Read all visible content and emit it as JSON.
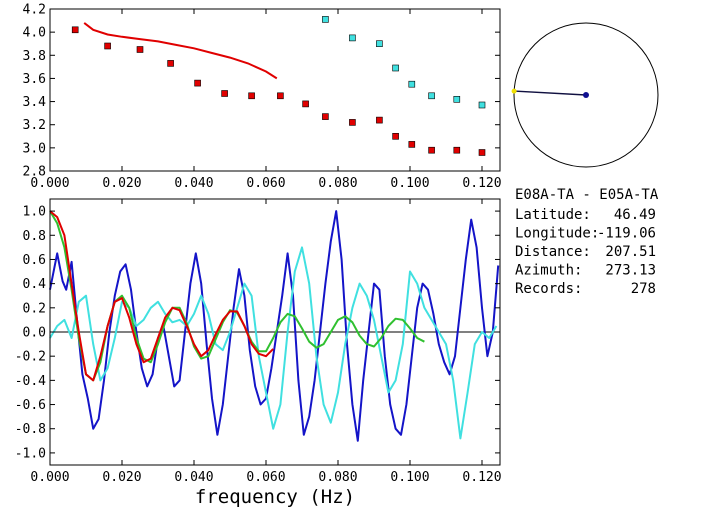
{
  "chart_data": [
    {
      "type": "scatter",
      "xlim": [
        0.0,
        0.125
      ],
      "ylim": [
        2.8,
        4.2
      ],
      "x_ticks": [
        "0.000",
        "0.020",
        "0.040",
        "0.060",
        "0.080",
        "0.100",
        "0.120"
      ],
      "y_ticks": [
        "2.8",
        "3.0",
        "3.2",
        "3.4",
        "3.6",
        "3.8",
        "4.0",
        "4.2"
      ],
      "series": [
        {
          "color": "#e00000",
          "kind": "markers",
          "x": [
            0.007,
            0.016,
            0.025,
            0.0335,
            0.041,
            0.0485,
            0.056,
            0.064,
            0.071,
            0.0765,
            0.084,
            0.0915,
            0.096,
            0.1005,
            0.106,
            0.113,
            0.12
          ],
          "y": [
            4.02,
            3.88,
            3.85,
            3.73,
            3.56,
            3.47,
            3.45,
            3.45,
            3.38,
            3.27,
            3.22,
            3.24,
            3.1,
            3.03,
            2.98,
            2.98,
            2.96
          ]
        },
        {
          "color": "#40e0e0",
          "kind": "markers",
          "x": [
            0.0765,
            0.084,
            0.0915,
            0.096,
            0.1005,
            0.106,
            0.113,
            0.12
          ],
          "y": [
            4.11,
            3.95,
            3.9,
            3.69,
            3.55,
            3.45,
            3.42,
            3.37
          ]
        },
        {
          "color": "#e00000",
          "kind": "line",
          "x": [
            0.0095,
            0.012,
            0.016,
            0.02,
            0.025,
            0.03,
            0.035,
            0.04,
            0.045,
            0.05,
            0.055,
            0.06,
            0.063
          ],
          "y": [
            4.08,
            4.02,
            3.98,
            3.96,
            3.94,
            3.92,
            3.89,
            3.86,
            3.82,
            3.78,
            3.73,
            3.66,
            3.6
          ]
        }
      ]
    },
    {
      "type": "line",
      "xlim": [
        0.0,
        0.125
      ],
      "ylim": [
        -1.1,
        1.1
      ],
      "xlabel": "frequency (Hz)",
      "x_ticks": [
        "0.000",
        "0.020",
        "0.040",
        "0.060",
        "0.080",
        "0.100",
        "0.120"
      ],
      "y_ticks": [
        "1.0",
        "0.8",
        "0.6",
        "0.4",
        "0.2",
        "0.0",
        "-0.2",
        "-0.4",
        "-0.6",
        "-0.8",
        "-1.0"
      ],
      "series": [
        {
          "color": "#1414c8",
          "x": [
            0.0,
            0.002,
            0.0035,
            0.0045,
            0.006,
            0.0075,
            0.009,
            0.0105,
            0.012,
            0.0135,
            0.015,
            0.0165,
            0.018,
            0.0195,
            0.021,
            0.0225,
            0.024,
            0.0255,
            0.027,
            0.0285,
            0.03,
            0.0315,
            0.033,
            0.0345,
            0.036,
            0.0375,
            0.039,
            0.0405,
            0.042,
            0.0435,
            0.045,
            0.0465,
            0.048,
            0.0495,
            0.051,
            0.0525,
            0.054,
            0.0555,
            0.057,
            0.0585,
            0.06,
            0.0615,
            0.063,
            0.0645,
            0.066,
            0.0675,
            0.069,
            0.0705,
            0.072,
            0.0735,
            0.075,
            0.0765,
            0.078,
            0.0795,
            0.081,
            0.0825,
            0.084,
            0.0855,
            0.087,
            0.0885,
            0.09,
            0.0915,
            0.093,
            0.0945,
            0.096,
            0.0975,
            0.099,
            0.1005,
            0.102,
            0.1035,
            0.105,
            0.1065,
            0.108,
            0.1095,
            0.111,
            0.1125,
            0.114,
            0.1155,
            0.117,
            0.1185,
            0.12,
            0.1215,
            0.123,
            0.1245
          ],
          "y": [
            0.35,
            0.65,
            0.42,
            0.35,
            0.58,
            0.1,
            -0.35,
            -0.55,
            -0.8,
            -0.72,
            -0.4,
            0.0,
            0.3,
            0.5,
            0.56,
            0.35,
            0.0,
            -0.3,
            -0.45,
            -0.35,
            -0.05,
            0.05,
            -0.2,
            -0.45,
            -0.4,
            0.0,
            0.4,
            0.65,
            0.4,
            -0.1,
            -0.55,
            -0.85,
            -0.6,
            -0.2,
            0.2,
            0.52,
            0.3,
            -0.15,
            -0.45,
            -0.6,
            -0.55,
            -0.3,
            0.0,
            0.3,
            0.65,
            0.3,
            -0.4,
            -0.85,
            -0.7,
            -0.4,
            0.0,
            0.4,
            0.75,
            1.0,
            0.6,
            -0.1,
            -0.6,
            -0.9,
            -0.4,
            0.0,
            0.4,
            0.35,
            -0.2,
            -0.6,
            -0.8,
            -0.85,
            -0.6,
            -0.2,
            0.2,
            0.4,
            0.35,
            0.15,
            -0.1,
            -0.25,
            -0.35,
            -0.2,
            0.2,
            0.6,
            0.93,
            0.7,
            0.2,
            -0.2,
            0.0,
            0.55
          ]
        },
        {
          "color": "#40e0e0",
          "x": [
            0.0,
            0.002,
            0.004,
            0.006,
            0.008,
            0.01,
            0.012,
            0.014,
            0.016,
            0.018,
            0.02,
            0.022,
            0.024,
            0.026,
            0.028,
            0.03,
            0.032,
            0.034,
            0.036,
            0.038,
            0.04,
            0.042,
            0.044,
            0.046,
            0.048,
            0.05,
            0.052,
            0.054,
            0.056,
            0.058,
            0.06,
            0.062,
            0.064,
            0.066,
            0.068,
            0.07,
            0.072,
            0.074,
            0.076,
            0.078,
            0.08,
            0.082,
            0.084,
            0.086,
            0.088,
            0.09,
            0.092,
            0.094,
            0.096,
            0.098,
            0.1,
            0.102,
            0.104,
            0.106,
            0.108,
            0.11,
            0.112,
            0.114,
            0.116,
            0.118,
            0.12,
            0.122,
            0.124
          ],
          "y": [
            -0.05,
            0.05,
            0.1,
            -0.05,
            0.25,
            0.3,
            -0.1,
            -0.4,
            -0.3,
            -0.05,
            0.25,
            0.2,
            0.05,
            0.1,
            0.2,
            0.25,
            0.15,
            0.08,
            0.1,
            0.05,
            0.15,
            0.3,
            0.15,
            -0.1,
            -0.15,
            0.0,
            0.2,
            0.4,
            0.3,
            -0.2,
            -0.5,
            -0.8,
            -0.6,
            0.0,
            0.5,
            0.7,
            0.4,
            -0.2,
            -0.6,
            -0.75,
            -0.5,
            -0.1,
            0.2,
            0.4,
            0.3,
            0.1,
            -0.2,
            -0.5,
            -0.4,
            -0.1,
            0.5,
            0.4,
            0.2,
            0.1,
            0.0,
            -0.1,
            -0.4,
            -0.88,
            -0.5,
            -0.1,
            0.0,
            -0.05,
            0.05
          ]
        },
        {
          "color": "#30c030",
          "x": [
            0.0,
            0.002,
            0.004,
            0.006,
            0.008,
            0.01,
            0.012,
            0.014,
            0.016,
            0.018,
            0.02,
            0.022,
            0.024,
            0.026,
            0.028,
            0.03,
            0.032,
            0.034,
            0.036,
            0.038,
            0.04,
            0.042,
            0.044,
            0.046,
            0.048,
            0.05,
            0.052,
            0.054,
            0.056,
            0.058,
            0.06,
            0.062,
            0.064,
            0.066,
            0.068,
            0.07,
            0.072,
            0.074,
            0.076,
            0.078,
            0.08,
            0.082,
            0.084,
            0.086,
            0.088,
            0.09,
            0.092,
            0.094,
            0.096,
            0.098,
            0.1,
            0.102,
            0.104
          ],
          "y": [
            1.0,
            0.9,
            0.7,
            0.35,
            -0.05,
            -0.35,
            -0.4,
            -0.25,
            0.05,
            0.25,
            0.3,
            0.2,
            -0.05,
            -0.22,
            -0.25,
            -0.1,
            0.08,
            0.2,
            0.2,
            0.07,
            -0.12,
            -0.22,
            -0.2,
            -0.06,
            0.08,
            0.18,
            0.16,
            0.05,
            -0.08,
            -0.16,
            -0.16,
            -0.05,
            0.08,
            0.15,
            0.13,
            0.03,
            -0.08,
            -0.13,
            -0.1,
            0.0,
            0.1,
            0.13,
            0.08,
            -0.03,
            -0.1,
            -0.12,
            -0.05,
            0.05,
            0.11,
            0.1,
            0.03,
            -0.05,
            -0.08
          ]
        },
        {
          "color": "#e00000",
          "x": [
            0.0,
            0.002,
            0.004,
            0.006,
            0.008,
            0.01,
            0.012,
            0.014,
            0.016,
            0.018,
            0.02,
            0.022,
            0.024,
            0.026,
            0.028,
            0.03,
            0.032,
            0.034,
            0.036,
            0.038,
            0.04,
            0.042,
            0.044,
            0.046,
            0.048,
            0.05,
            0.052,
            0.054,
            0.056,
            0.058,
            0.06,
            0.062
          ],
          "y": [
            1.0,
            0.95,
            0.8,
            0.4,
            0.0,
            -0.35,
            -0.4,
            -0.2,
            0.05,
            0.25,
            0.28,
            0.12,
            -0.1,
            -0.25,
            -0.22,
            -0.05,
            0.12,
            0.2,
            0.18,
            0.05,
            -0.1,
            -0.2,
            -0.15,
            -0.02,
            0.1,
            0.17,
            0.17,
            0.05,
            -0.1,
            -0.18,
            -0.2,
            -0.14
          ]
        }
      ]
    }
  ],
  "azimuth_plot": {
    "azimuth_deg": 273.13,
    "center_color": "#101090",
    "line_color": "#101040",
    "end_color": "#f0e000"
  },
  "info": {
    "station_pair": "E08A-TA - E05A-TA",
    "rows": [
      {
        "label": "Latitude:",
        "value": "46.49"
      },
      {
        "label": "Longitude:",
        "value": "-119.06"
      },
      {
        "label": "Distance:",
        "value": "207.51"
      },
      {
        "label": "Azimuth:",
        "value": "273.13"
      },
      {
        "label": "Records:",
        "value": "278"
      }
    ]
  }
}
